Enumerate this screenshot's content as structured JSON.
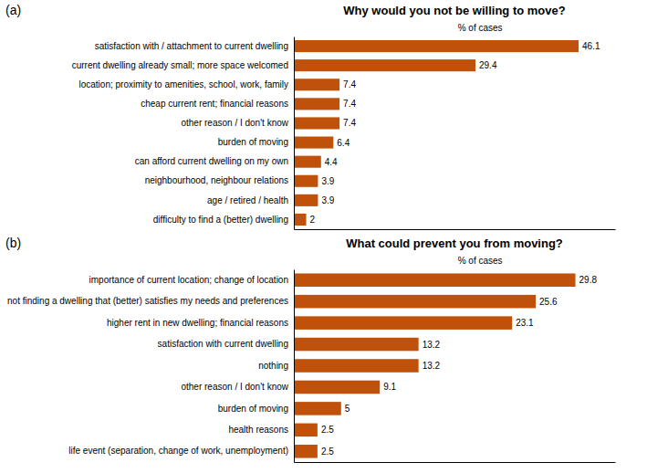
{
  "chart_data": [
    {
      "type": "bar",
      "orientation": "horizontal",
      "title": "Why would you not be willing to move?",
      "xlabel": "% of cases",
      "annotations": [
        "(a)"
      ],
      "color": "#c0510a",
      "categories": [
        "satisfaction with / attachment to current dwelling",
        "current dwelling already small; more space welcomed",
        "location; proximity to amenities, school, work, family",
        "cheap current rent; financial reasons",
        "other reason / I don't know",
        "burden of moving",
        "can afford current dwelling on my own",
        "neighbourhood, neighbour relations",
        "age / retired / health",
        "difficulty to find a (better) dwelling"
      ],
      "values": [
        46.1,
        29.4,
        7.4,
        7.4,
        7.4,
        6.4,
        4.4,
        3.9,
        3.9,
        2.0
      ],
      "xlim": [
        0,
        52
      ],
      "data_labels": true,
      "tick_labels": "y",
      "grid": false
    },
    {
      "type": "bar",
      "orientation": "horizontal",
      "title": "What could prevent you from moving?",
      "xlabel": "% of cases",
      "annotations": [
        "(b)"
      ],
      "color": "#c0510a",
      "categories": [
        "importance of current location; change of location",
        "not finding a dwelling that (better) satisfies my needs and preferences",
        "higher rent in new dwelling; financial reasons",
        "satisfaction with current dwelling",
        "nothing",
        "other reason / I don't know",
        "burden of moving",
        "health reasons",
        "life event (separation, change of work, unemployment)"
      ],
      "values": [
        29.8,
        25.6,
        23.1,
        13.2,
        13.2,
        9.1,
        5.0,
        2.5,
        2.5
      ],
      "xlim": [
        0,
        34
      ],
      "data_labels": true,
      "tick_labels": "y",
      "grid": false
    }
  ]
}
